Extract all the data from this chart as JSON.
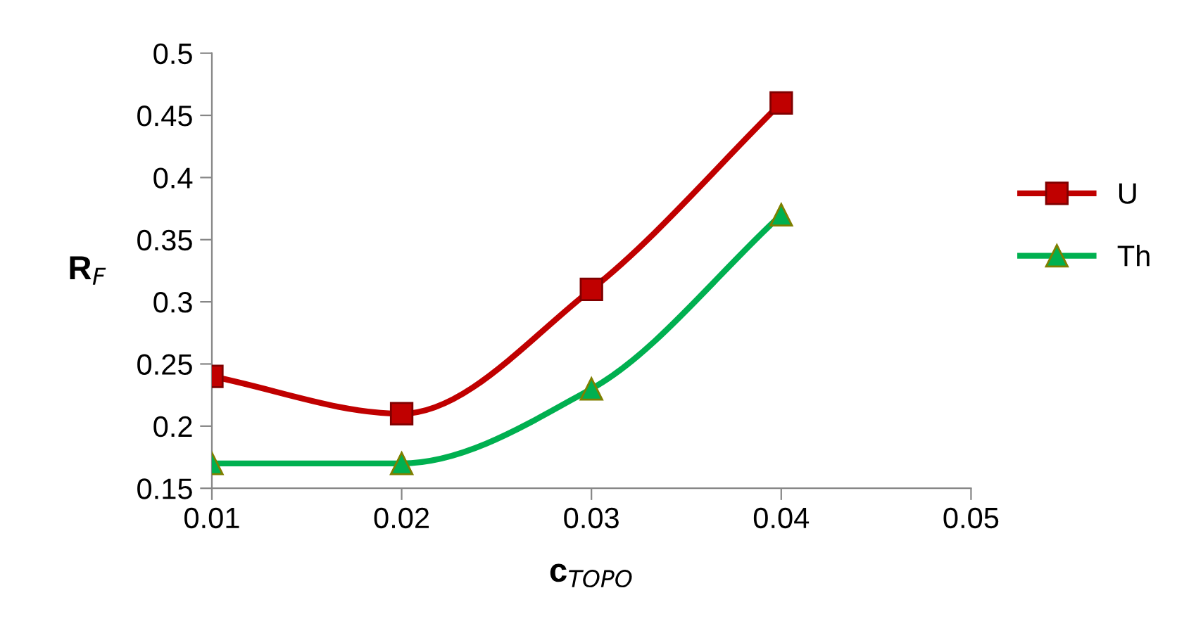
{
  "chart_data": {
    "type": "line",
    "xlabel": "c$_{TOPO}$",
    "ylabel": "R$_{F}$",
    "x": [
      0.01,
      0.02,
      0.03,
      0.04
    ],
    "series": [
      {
        "name": "U",
        "color": "#c00000",
        "marker": "square",
        "values": [
          0.24,
          0.21,
          0.31,
          0.46
        ]
      },
      {
        "name": "Th",
        "color": "#00b050",
        "marker": "triangle",
        "values": [
          0.17,
          0.17,
          0.23,
          0.37
        ]
      }
    ],
    "xlim": [
      0.01,
      0.05
    ],
    "xticks": [
      0.01,
      0.02,
      0.03,
      0.04,
      0.05
    ],
    "ylim": [
      0.15,
      0.5
    ],
    "yticks": [
      0.15,
      0.2,
      0.25,
      0.3,
      0.35,
      0.4,
      0.45,
      0.5
    ],
    "grid": false,
    "legend": "right",
    "line_style": "solid"
  }
}
